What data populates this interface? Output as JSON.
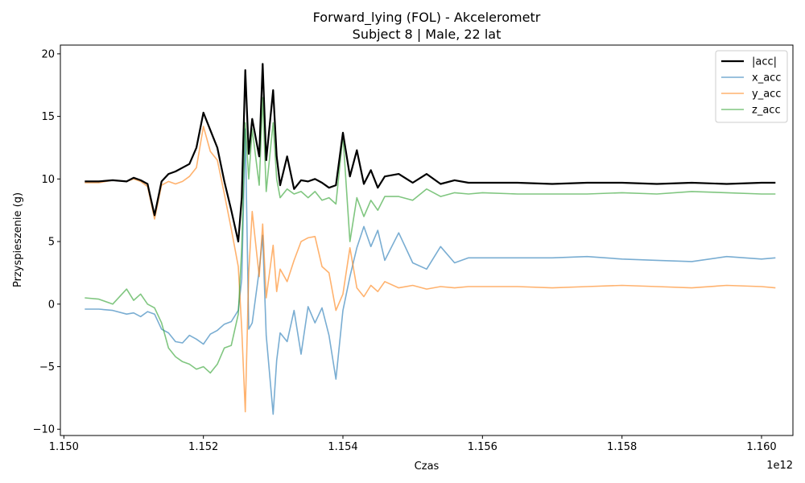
{
  "chart_data": {
    "type": "line",
    "title": "Forward_lying (FOL) - Akcelerometr",
    "subtitle": "Subject 8 | Male, 22 lat",
    "xlabel": "Czas",
    "ylabel": "Przyspieszenie (g)",
    "x_offset_label": "1e12",
    "xlim": [
      1.14995,
      1.16045
    ],
    "ylim": [
      -10.5,
      20.7
    ],
    "xticks": [
      1.15,
      1.152,
      1.154,
      1.156,
      1.158,
      1.16
    ],
    "xtick_labels": [
      "1.150",
      "1.152",
      "1.154",
      "1.156",
      "1.158",
      "1.160"
    ],
    "yticks": [
      -10,
      -5,
      0,
      5,
      10,
      15,
      20
    ],
    "ytick_labels": [
      "−10",
      "−5",
      "0",
      "5",
      "10",
      "15",
      "20"
    ],
    "grid": false,
    "legend_position": "top-right",
    "series": [
      {
        "name": "|acc|",
        "color": "#000000",
        "x": [
          1.1503,
          1.1505,
          1.1507,
          1.1509,
          1.151,
          1.1511,
          1.1512,
          1.1513,
          1.1514,
          1.1515,
          1.1516,
          1.1517,
          1.1518,
          1.1519,
          1.152,
          1.1521,
          1.1522,
          1.1523,
          1.1524,
          1.1525,
          1.15255,
          1.1526,
          1.15265,
          1.1527,
          1.1528,
          1.15285,
          1.1529,
          1.153,
          1.15305,
          1.1531,
          1.1532,
          1.1533,
          1.1534,
          1.1535,
          1.1536,
          1.1537,
          1.1538,
          1.1539,
          1.154,
          1.1541,
          1.1542,
          1.1543,
          1.1544,
          1.1545,
          1.1546,
          1.1548,
          1.155,
          1.1552,
          1.1554,
          1.1556,
          1.1558,
          1.156,
          1.1565,
          1.157,
          1.1575,
          1.158,
          1.1585,
          1.159,
          1.1595,
          1.16,
          1.1602
        ],
        "values": [
          9.8,
          9.8,
          9.9,
          9.8,
          10.1,
          9.9,
          9.6,
          7.1,
          9.8,
          10.4,
          10.6,
          10.9,
          11.2,
          12.5,
          15.3,
          13.9,
          12.5,
          9.8,
          7.5,
          5.0,
          8.5,
          18.7,
          12.0,
          14.8,
          11.8,
          19.2,
          11.5,
          17.1,
          11.8,
          9.5,
          11.8,
          9.2,
          9.9,
          9.8,
          10.0,
          9.7,
          9.3,
          9.5,
          13.7,
          10.2,
          12.3,
          9.6,
          10.7,
          9.3,
          10.2,
          10.4,
          9.7,
          10.4,
          9.6,
          9.9,
          9.7,
          9.7,
          9.7,
          9.6,
          9.7,
          9.7,
          9.6,
          9.7,
          9.6,
          9.7,
          9.7
        ]
      },
      {
        "name": "x_acc",
        "color": "#1f77b4",
        "x": [
          1.1503,
          1.1505,
          1.1507,
          1.1509,
          1.151,
          1.1511,
          1.1512,
          1.1513,
          1.1514,
          1.1515,
          1.1516,
          1.1517,
          1.1518,
          1.1519,
          1.152,
          1.1521,
          1.1522,
          1.1523,
          1.1524,
          1.1525,
          1.15255,
          1.1526,
          1.15265,
          1.1527,
          1.1528,
          1.15285,
          1.1529,
          1.153,
          1.15305,
          1.1531,
          1.1532,
          1.1533,
          1.1534,
          1.1535,
          1.1536,
          1.1537,
          1.1538,
          1.1539,
          1.154,
          1.1541,
          1.1542,
          1.1543,
          1.1544,
          1.1545,
          1.1546,
          1.1548,
          1.155,
          1.1552,
          1.1554,
          1.1556,
          1.1558,
          1.156,
          1.1565,
          1.157,
          1.1575,
          1.158,
          1.1585,
          1.159,
          1.1595,
          1.16,
          1.1602
        ],
        "values": [
          -0.4,
          -0.4,
          -0.5,
          -0.8,
          -0.7,
          -1.0,
          -0.6,
          -0.8,
          -2.0,
          -2.3,
          -3.0,
          -3.1,
          -2.5,
          -2.8,
          -3.2,
          -2.4,
          -2.1,
          -1.6,
          -1.4,
          -0.5,
          2.0,
          14.0,
          -2.0,
          -1.5,
          2.7,
          5.5,
          -2.5,
          -8.8,
          -4.5,
          -2.3,
          -3.0,
          -0.5,
          -4.0,
          -0.2,
          -1.5,
          -0.3,
          -2.5,
          -6.0,
          -0.5,
          2.2,
          4.5,
          6.2,
          4.6,
          5.9,
          3.5,
          5.7,
          3.3,
          2.8,
          4.6,
          3.3,
          3.7,
          3.7,
          3.7,
          3.7,
          3.8,
          3.6,
          3.5,
          3.4,
          3.8,
          3.6,
          3.7
        ]
      },
      {
        "name": "y_acc",
        "color": "#ff7f0e",
        "x": [
          1.1503,
          1.1505,
          1.1507,
          1.1509,
          1.151,
          1.1511,
          1.1512,
          1.1513,
          1.1514,
          1.1515,
          1.1516,
          1.1517,
          1.1518,
          1.1519,
          1.152,
          1.1521,
          1.1522,
          1.1523,
          1.1524,
          1.1525,
          1.15255,
          1.1526,
          1.15265,
          1.1527,
          1.1528,
          1.15285,
          1.1529,
          1.153,
          1.15305,
          1.1531,
          1.1532,
          1.1533,
          1.1534,
          1.1535,
          1.1536,
          1.1537,
          1.1538,
          1.1539,
          1.154,
          1.1541,
          1.1542,
          1.1543,
          1.1544,
          1.1545,
          1.1546,
          1.1548,
          1.155,
          1.1552,
          1.1554,
          1.1556,
          1.1558,
          1.156,
          1.1565,
          1.157,
          1.1575,
          1.158,
          1.1585,
          1.159,
          1.1595,
          1.16,
          1.1602
        ],
        "values": [
          9.7,
          9.7,
          9.9,
          9.8,
          10.0,
          9.8,
          9.4,
          6.8,
          9.5,
          9.8,
          9.6,
          9.8,
          10.2,
          10.9,
          14.2,
          12.2,
          11.5,
          8.8,
          6.0,
          3.0,
          -2.0,
          -8.6,
          2.5,
          7.4,
          2.2,
          6.4,
          0.5,
          4.7,
          1.0,
          2.8,
          1.8,
          3.5,
          5.0,
          5.3,
          5.4,
          3.0,
          2.5,
          -0.5,
          0.8,
          4.5,
          1.3,
          0.6,
          1.5,
          1.0,
          1.8,
          1.3,
          1.5,
          1.2,
          1.4,
          1.3,
          1.4,
          1.4,
          1.4,
          1.3,
          1.4,
          1.5,
          1.4,
          1.3,
          1.5,
          1.4,
          1.3
        ]
      },
      {
        "name": "z_acc",
        "color": "#2ca02c",
        "x": [
          1.1503,
          1.1505,
          1.1507,
          1.1509,
          1.151,
          1.1511,
          1.1512,
          1.1513,
          1.1514,
          1.1515,
          1.1516,
          1.1517,
          1.1518,
          1.1519,
          1.152,
          1.1521,
          1.1522,
          1.1523,
          1.1524,
          1.1525,
          1.15255,
          1.1526,
          1.15265,
          1.1527,
          1.1528,
          1.15285,
          1.1529,
          1.153,
          1.15305,
          1.1531,
          1.1532,
          1.1533,
          1.1534,
          1.1535,
          1.1536,
          1.1537,
          1.1538,
          1.1539,
          1.154,
          1.1541,
          1.1542,
          1.1543,
          1.1544,
          1.1545,
          1.1546,
          1.1548,
          1.155,
          1.1552,
          1.1554,
          1.1556,
          1.1558,
          1.156,
          1.1565,
          1.157,
          1.1575,
          1.158,
          1.1585,
          1.159,
          1.1595,
          1.16,
          1.1602
        ],
        "values": [
          0.5,
          0.4,
          0.0,
          1.2,
          0.3,
          0.8,
          0.0,
          -0.3,
          -1.5,
          -3.5,
          -4.2,
          -4.6,
          -4.8,
          -5.2,
          -5.0,
          -5.5,
          -4.8,
          -3.5,
          -3.3,
          -0.8,
          4.5,
          14.5,
          10.0,
          14.0,
          9.5,
          16.5,
          9.0,
          14.5,
          10.0,
          8.5,
          9.2,
          8.8,
          9.0,
          8.5,
          9.0,
          8.3,
          8.5,
          8.0,
          13.5,
          5.0,
          8.5,
          7.0,
          8.3,
          7.5,
          8.6,
          8.6,
          8.3,
          9.2,
          8.6,
          8.9,
          8.8,
          8.9,
          8.8,
          8.8,
          8.8,
          8.9,
          8.8,
          9.0,
          8.9,
          8.8,
          8.8
        ]
      }
    ]
  }
}
